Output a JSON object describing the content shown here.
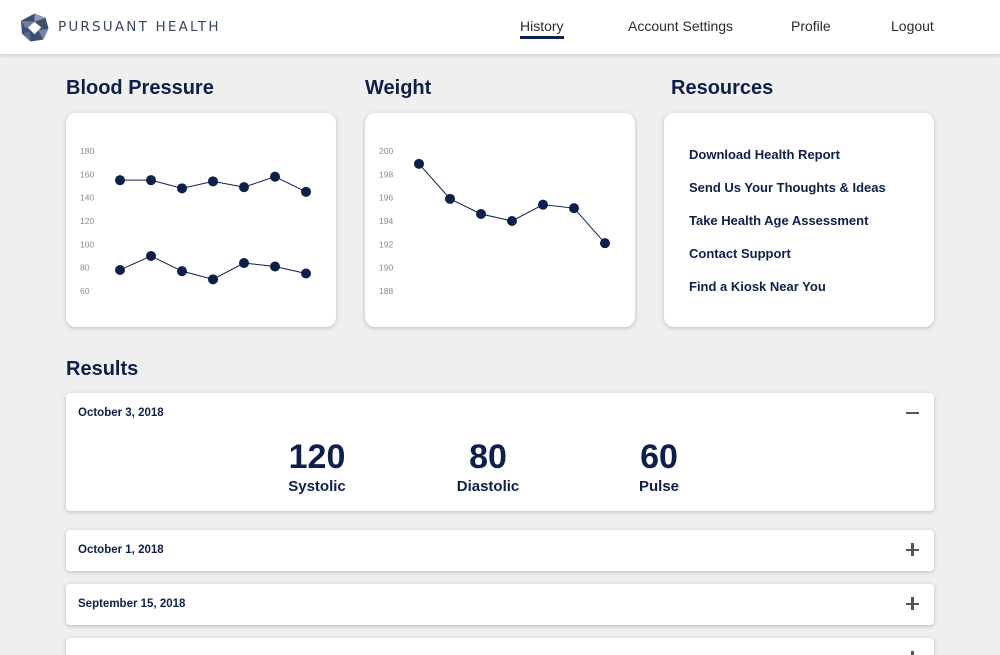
{
  "brand": {
    "name": "PURSUANT HEALTH",
    "color": "#0d1f4a"
  },
  "nav": {
    "items": [
      {
        "label": "History",
        "active": true
      },
      {
        "label": "Account Settings",
        "active": false
      },
      {
        "label": "Profile",
        "active": false
      },
      {
        "label": "Logout",
        "active": false
      }
    ]
  },
  "blood_pressure": {
    "title": "Blood Pressure",
    "chart_data": {
      "type": "line",
      "yticks": [
        "180",
        "160",
        "140",
        "120",
        "100",
        "80",
        "60"
      ],
      "ylim": [
        60,
        180
      ],
      "series": [
        {
          "values": [
            155,
            155,
            148,
            154,
            149,
            158,
            145
          ]
        },
        {
          "values": [
            78,
            90,
            77,
            70,
            84,
            81,
            75
          ]
        }
      ],
      "color": "#0d1f4a"
    }
  },
  "weight": {
    "title": "Weight",
    "chart_data": {
      "type": "line",
      "yticks": [
        "200",
        "198",
        "196",
        "194",
        "192",
        "190",
        "188"
      ],
      "ylim": [
        188,
        200
      ],
      "series": [
        {
          "values": [
            198.9,
            195.9,
            194.6,
            194.0,
            195.4,
            195.1,
            192.1
          ]
        }
      ],
      "color": "#0d1f4a"
    }
  },
  "resources": {
    "title": "Resources",
    "links": [
      "Download Health Report",
      "Send Us Your Thoughts & Ideas",
      "Take Health Age Assessment",
      "Contact Support",
      "Find a Kiosk Near You"
    ]
  },
  "results": {
    "title": "Results",
    "entries": [
      {
        "date": "October 3, 2018",
        "expanded": true,
        "metrics": [
          {
            "value": "120",
            "label": "Systolic"
          },
          {
            "value": "80",
            "label": "Diastolic"
          },
          {
            "value": "60",
            "label": "Pulse"
          }
        ]
      },
      {
        "date": "October 1, 2018",
        "expanded": false
      },
      {
        "date": "September 15, 2018",
        "expanded": false
      },
      {
        "date": "",
        "expanded": false
      }
    ]
  }
}
